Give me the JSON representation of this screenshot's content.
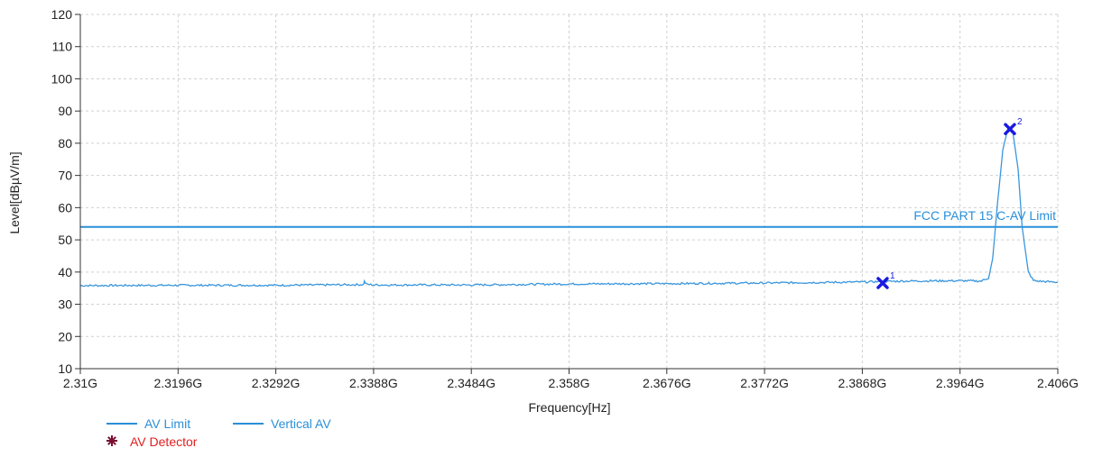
{
  "chart_data": {
    "type": "line",
    "xlabel": "Frequency[Hz]",
    "ylabel": "Level[dBµV/m]",
    "x_tick_labels": [
      "2.31G",
      "2.3196G",
      "2.3292G",
      "2.3388G",
      "2.3484G",
      "2.358G",
      "2.3676G",
      "2.3772G",
      "2.3868G",
      "2.3964G",
      "2.406G"
    ],
    "y_tick_labels": [
      "10",
      "20",
      "30",
      "40",
      "50",
      "60",
      "70",
      "80",
      "90",
      "100",
      "110",
      "120"
    ],
    "xlim": [
      2.31,
      2.406
    ],
    "ylim": [
      10,
      120
    ],
    "grid": true,
    "limit_line": {
      "label": "FCC PART 15 C-AV Limit",
      "value": 54,
      "color": "#2a8fd8"
    },
    "series": [
      {
        "name": "Vertical AV",
        "color": "#3a96dd",
        "x": [
          2.31,
          2.3196,
          2.3292,
          2.3378,
          2.3379,
          2.3381,
          2.3388,
          2.3484,
          2.358,
          2.3676,
          2.3772,
          2.3868,
          2.391,
          2.3964,
          2.3985,
          2.3992,
          2.3996,
          2.4001,
          2.4006,
          2.4011,
          2.4016,
          2.4021,
          2.4025,
          2.4031,
          2.4036,
          2.404,
          2.406
        ],
        "y": [
          35.8,
          35.9,
          35.9,
          36.1,
          37.1,
          36.2,
          36.0,
          36.0,
          36.3,
          36.4,
          36.6,
          36.9,
          37.2,
          37.3,
          37.2,
          38.2,
          44,
          62,
          78,
          84.5,
          83,
          72,
          54,
          40,
          37.4,
          37.2,
          36.8
        ]
      }
    ],
    "markers": [
      {
        "label": "1",
        "x": 2.3888,
        "y": 36.6
      },
      {
        "label": "2",
        "x": 2.4013,
        "y": 84.4
      }
    ],
    "legend": {
      "placement": "bottom-left",
      "entries": [
        {
          "label": "AV Limit",
          "color": "#2a8fd8",
          "symbol": "line"
        },
        {
          "label": "Vertical AV",
          "color": "#2a8fd8",
          "symbol": "line"
        },
        {
          "label": "AV Detector",
          "color": "#e02020",
          "symbol": "star",
          "symbol_color": "#7a1030"
        }
      ]
    },
    "colors": {
      "marker": "#1a1ae0",
      "grid": "#d0d0d0",
      "axis": "#333333"
    }
  }
}
